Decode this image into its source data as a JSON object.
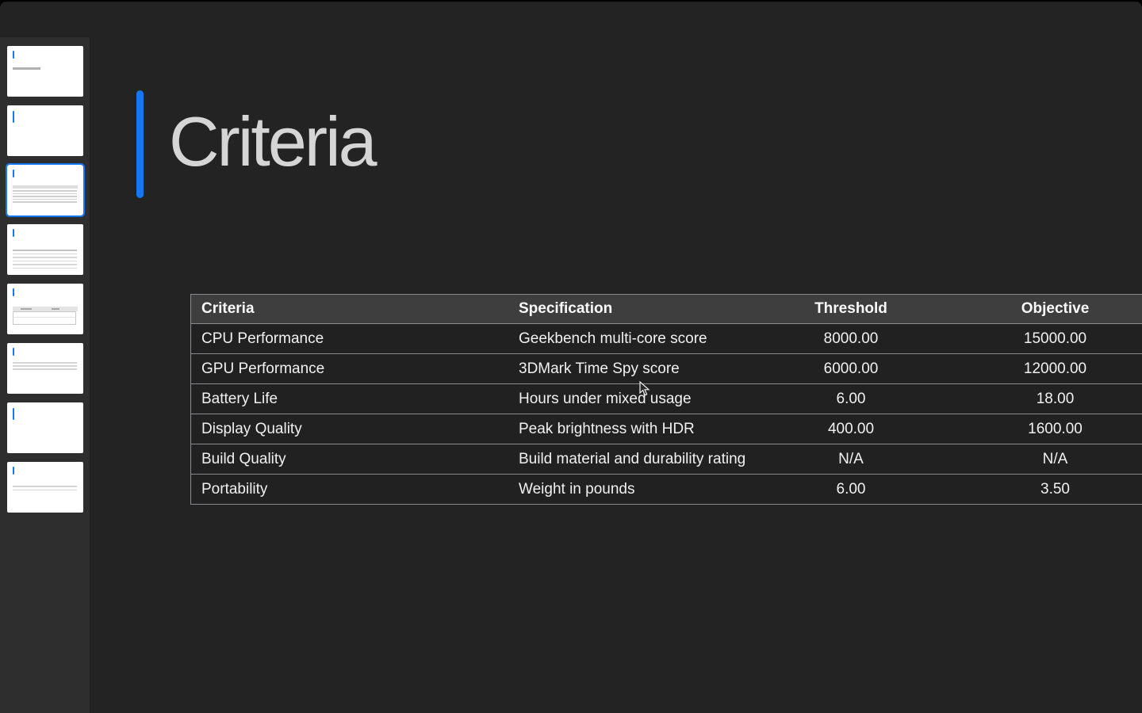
{
  "colors": {
    "accent_blue": "#1677f3",
    "app_bg": "#232323",
    "sidebar_bg": "#2e2e2e",
    "table_header_bg": "#3e3e3e",
    "table_row_bg": "#212121",
    "table_border": "#8a8a8f",
    "title_text": "#d5d5d5",
    "cell_text": "#f1f1f1"
  },
  "sidebar": {
    "selected_index": 2,
    "thumbnails": [
      {
        "kind": "title-slide"
      },
      {
        "kind": "blank"
      },
      {
        "kind": "table-lines"
      },
      {
        "kind": "lines-6"
      },
      {
        "kind": "header-box"
      },
      {
        "kind": "lines-3"
      },
      {
        "kind": "blank"
      },
      {
        "kind": "lines-2"
      }
    ]
  },
  "slide": {
    "title": "Criteria"
  },
  "table": {
    "headers": [
      "Criteria",
      "Specification",
      "Threshold",
      "Objective"
    ],
    "rows": [
      [
        "CPU Performance",
        "Geekbench multi-core score",
        "8000.00",
        "15000.00"
      ],
      [
        "GPU Performance",
        "3DMark Time Spy score",
        "6000.00",
        "12000.00"
      ],
      [
        "Battery Life",
        "Hours under mixed usage",
        "6.00",
        "18.00"
      ],
      [
        "Display Quality",
        "Peak brightness with HDR",
        "400.00",
        "1600.00"
      ],
      [
        "Build Quality",
        "Build material and durability rating",
        "N/A",
        "N/A"
      ],
      [
        "Portability",
        "Weight in pounds",
        "6.00",
        "3.50"
      ]
    ]
  }
}
